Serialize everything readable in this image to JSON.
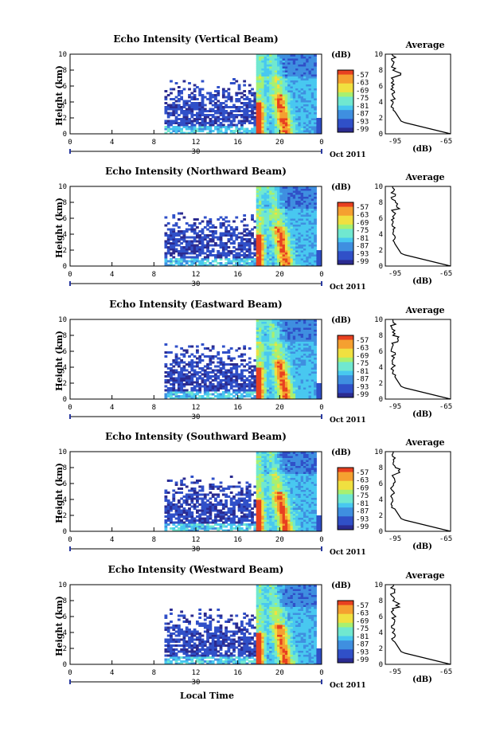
{
  "chart_data": [
    {
      "type": "heatmap",
      "title": "Echo Intensity (Vertical Beam)",
      "ylabel": "Height (km)"
    },
    {
      "type": "heatmap",
      "title": "Echo Intensity (Northward Beam)",
      "ylabel": "Height (km)"
    },
    {
      "type": "heatmap",
      "title": "Echo Intensity (Eastward Beam)",
      "ylabel": "Height (km)"
    },
    {
      "type": "heatmap",
      "title": "Echo Intensity (Southward Beam)",
      "ylabel": "Height (km)"
    },
    {
      "type": "heatmap",
      "title": "Echo Intensity (Westward Beam)",
      "ylabel": "Height (km)"
    }
  ],
  "shared": {
    "x_ticks": [
      "0",
      "4",
      "8",
      "12",
      "16",
      "20",
      "0"
    ],
    "x_range_hours": [
      0,
      24
    ],
    "y_ticks": [
      "0",
      "2",
      "4",
      "6",
      "8",
      "10"
    ],
    "y_range_km": [
      0,
      10
    ],
    "day_label": "30",
    "date_label": "Oct 2011",
    "colorbar_unit": "(dB)",
    "colorbar_ticks": [
      "-57",
      "-63",
      "-69",
      "-75",
      "-81",
      "-87",
      "-93",
      "-99"
    ],
    "average_title": "Average",
    "average_xticks": [
      "-95",
      "-65"
    ],
    "average_unit": "(dB)",
    "x_title": "Local Time"
  },
  "colors": {
    "palette": [
      "#2b2b90",
      "#3050c8",
      "#3f8fe0",
      "#48c8f0",
      "#70e8d0",
      "#a8f070",
      "#f0e040",
      "#f5a030",
      "#e84020"
    ]
  }
}
